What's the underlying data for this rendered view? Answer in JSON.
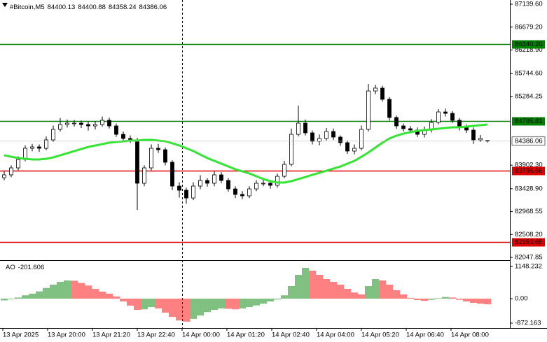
{
  "chart_data": [
    {
      "type": "candlestick",
      "title": "#Bitcoin,M5",
      "header_values": [
        84400.13,
        84400.88,
        84358.24,
        84386.06
      ],
      "open": [
        83650,
        83708,
        83848,
        84017,
        84242,
        84270,
        84242,
        84411,
        84622,
        84720,
        84748,
        84748,
        84720,
        84692,
        84720,
        84805,
        84692,
        84523,
        84439,
        84411,
        83539,
        83848,
        84242,
        84214,
        83961,
        83482,
        83398,
        83243,
        83482,
        83595,
        83539,
        83708,
        83595,
        83426,
        83314,
        83286,
        83426,
        83539,
        83539,
        83497,
        83679,
        83919,
        84523,
        84748,
        84552,
        84383,
        84439,
        84580,
        84467,
        84355,
        84186,
        84242,
        84622,
        85395,
        85452,
        85227,
        84861,
        84692,
        84636,
        84608,
        84523,
        84608,
        84762,
        84973,
        84945,
        84805,
        84664,
        84608,
        84411,
        84400.13
      ],
      "high": [
        83780,
        83900,
        84080,
        84300,
        84330,
        84320,
        84480,
        84700,
        84850,
        84820,
        84810,
        84800,
        84780,
        84790,
        84880,
        84860,
        84740,
        84580,
        84500,
        84450,
        83900,
        84320,
        84330,
        84260,
        84000,
        83560,
        83450,
        83560,
        83700,
        83640,
        83780,
        83760,
        83640,
        83480,
        83380,
        83480,
        83600,
        83610,
        83580,
        83730,
        83990,
        84640,
        85100,
        84820,
        84600,
        84520,
        84650,
        84640,
        84500,
        84400,
        84320,
        84700,
        85537,
        85520,
        85500,
        85270,
        84900,
        84740,
        84690,
        84660,
        84680,
        84830,
        85030,
        85040,
        84990,
        84850,
        84720,
        84660,
        84510,
        84400.88
      ],
      "low": [
        83600,
        83660,
        83800,
        83980,
        84180,
        84170,
        84200,
        84370,
        84580,
        84660,
        84680,
        84650,
        84600,
        84620,
        84680,
        84640,
        84470,
        84380,
        84350,
        83004,
        83480,
        83800,
        84150,
        83900,
        83400,
        83250,
        83130,
        83200,
        83420,
        83470,
        83480,
        83540,
        83370,
        83240,
        83220,
        83240,
        83380,
        83480,
        83430,
        83450,
        83640,
        83880,
        84480,
        84500,
        84320,
        84300,
        84400,
        84410,
        84290,
        84130,
        84120,
        84200,
        84580,
        85330,
        85180,
        84800,
        84630,
        84580,
        84550,
        84470,
        84460,
        84560,
        84720,
        84880,
        84750,
        84600,
        84550,
        84330,
        84370,
        84358.24
      ],
      "close": [
        83708,
        83848,
        84017,
        84242,
        84270,
        84242,
        84411,
        84622,
        84720,
        84748,
        84748,
        84720,
        84692,
        84720,
        84805,
        84692,
        84523,
        84439,
        84411,
        83539,
        83848,
        84242,
        84214,
        83961,
        83482,
        83398,
        83243,
        83482,
        83595,
        83539,
        83708,
        83595,
        83426,
        83314,
        83286,
        83426,
        83539,
        83539,
        83497,
        83679,
        83919,
        84523,
        84748,
        84552,
        84383,
        84439,
        84580,
        84467,
        84355,
        84186,
        84242,
        84622,
        85395,
        85452,
        85227,
        84861,
        84692,
        84636,
        84608,
        84523,
        84608,
        84762,
        84973,
        84945,
        84805,
        84664,
        84608,
        84411,
        84439,
        84386.06
      ],
      "up_color": "#ffffff",
      "down_color": "#000000",
      "outline_color": "#000000",
      "ma": {
        "color": "#32e632",
        "values": [
          84101,
          84073,
          84045,
          84031,
          84017,
          84017,
          84031,
          84059,
          84101,
          84143,
          84186,
          84228,
          84270,
          84298,
          84326,
          84355,
          84369,
          84383,
          84397,
          84397,
          84411,
          84411,
          84397,
          84383,
          84341,
          84298,
          84242,
          84186,
          84115,
          84045,
          83989,
          83933,
          83876,
          83820,
          83778,
          83736,
          83679,
          83623,
          83581,
          83553,
          83553,
          83581,
          83623,
          83665,
          83708,
          83750,
          83792,
          83834,
          83876,
          83933,
          83989,
          84073,
          84158,
          84256,
          84355,
          84439,
          84495,
          84537,
          84566,
          84594,
          84608,
          84622,
          84636,
          84650,
          84664,
          84664,
          84678,
          84692,
          84706,
          84720
        ]
      },
      "ylim": [
        81992,
        87224
      ],
      "yticks": [
        {
          "value": 87139.6,
          "label": "87139.60"
        },
        {
          "value": 86679.2,
          "label": "86679.20"
        },
        {
          "value": 86218.9,
          "label": "86218.90"
        },
        {
          "value": 85744.6,
          "label": "85744.60"
        },
        85284.25,
        {
          "value": 83902.3,
          "label": "83902.30"
        },
        {
          "value": 83428.9,
          "label": "83428.90"
        },
        82968.55,
        {
          "value": 82508.2,
          "label": "82508.20"
        },
        82047.85
      ],
      "levels": [
        {
          "value": 86340.2,
          "label": "86340.20",
          "color": "#008000"
        },
        {
          "value": 84795.81,
          "label": "84795.81",
          "color": "#008000"
        },
        {
          "value": 83796.66,
          "label": "83796.66",
          "color": "#e00000"
        },
        {
          "value": 82353.65,
          "label": "82353.65",
          "color": "#e00000"
        }
      ],
      "xticks": [
        "13 Apr 2025",
        "13 Apr 20:00",
        "13 Apr 21:20",
        "13 Apr 22:40",
        "14 Apr 00:00",
        "14 Apr 01:20",
        "14 Apr 02:40",
        "14 Apr 04:00",
        "14 Apr 05:20",
        "14 Apr 06:40",
        "14 Apr 08:00"
      ]
    },
    {
      "type": "oscillator",
      "title": "AO",
      "title_value": -201.606,
      "values": [
        -60,
        -20,
        40,
        120,
        180,
        260,
        380,
        500,
        600,
        650,
        640,
        560,
        470,
        350,
        250,
        180,
        80,
        -100,
        -250,
        -400,
        -380,
        -300,
        -350,
        -500,
        -650,
        -780,
        -820,
        -720,
        -600,
        -480,
        -400,
        -350,
        -360,
        -380,
        -350,
        -300,
        -240,
        -180,
        -100,
        -30,
        120,
        450,
        850,
        1100,
        1000,
        850,
        700,
        600,
        500,
        350,
        220,
        150,
        450,
        700,
        650,
        500,
        300,
        150,
        30,
        -50,
        -80,
        -40,
        20,
        60,
        40,
        -40,
        -100,
        -150,
        -180,
        -201.606
      ],
      "up_color": "#008000",
      "down_color": "#ff0000",
      "ylim": [
        -1022,
        1323
      ],
      "yticks": [
        1148.232,
        {
          "value": 0,
          "label": "0.00"
        },
        -872.163
      ]
    }
  ]
}
